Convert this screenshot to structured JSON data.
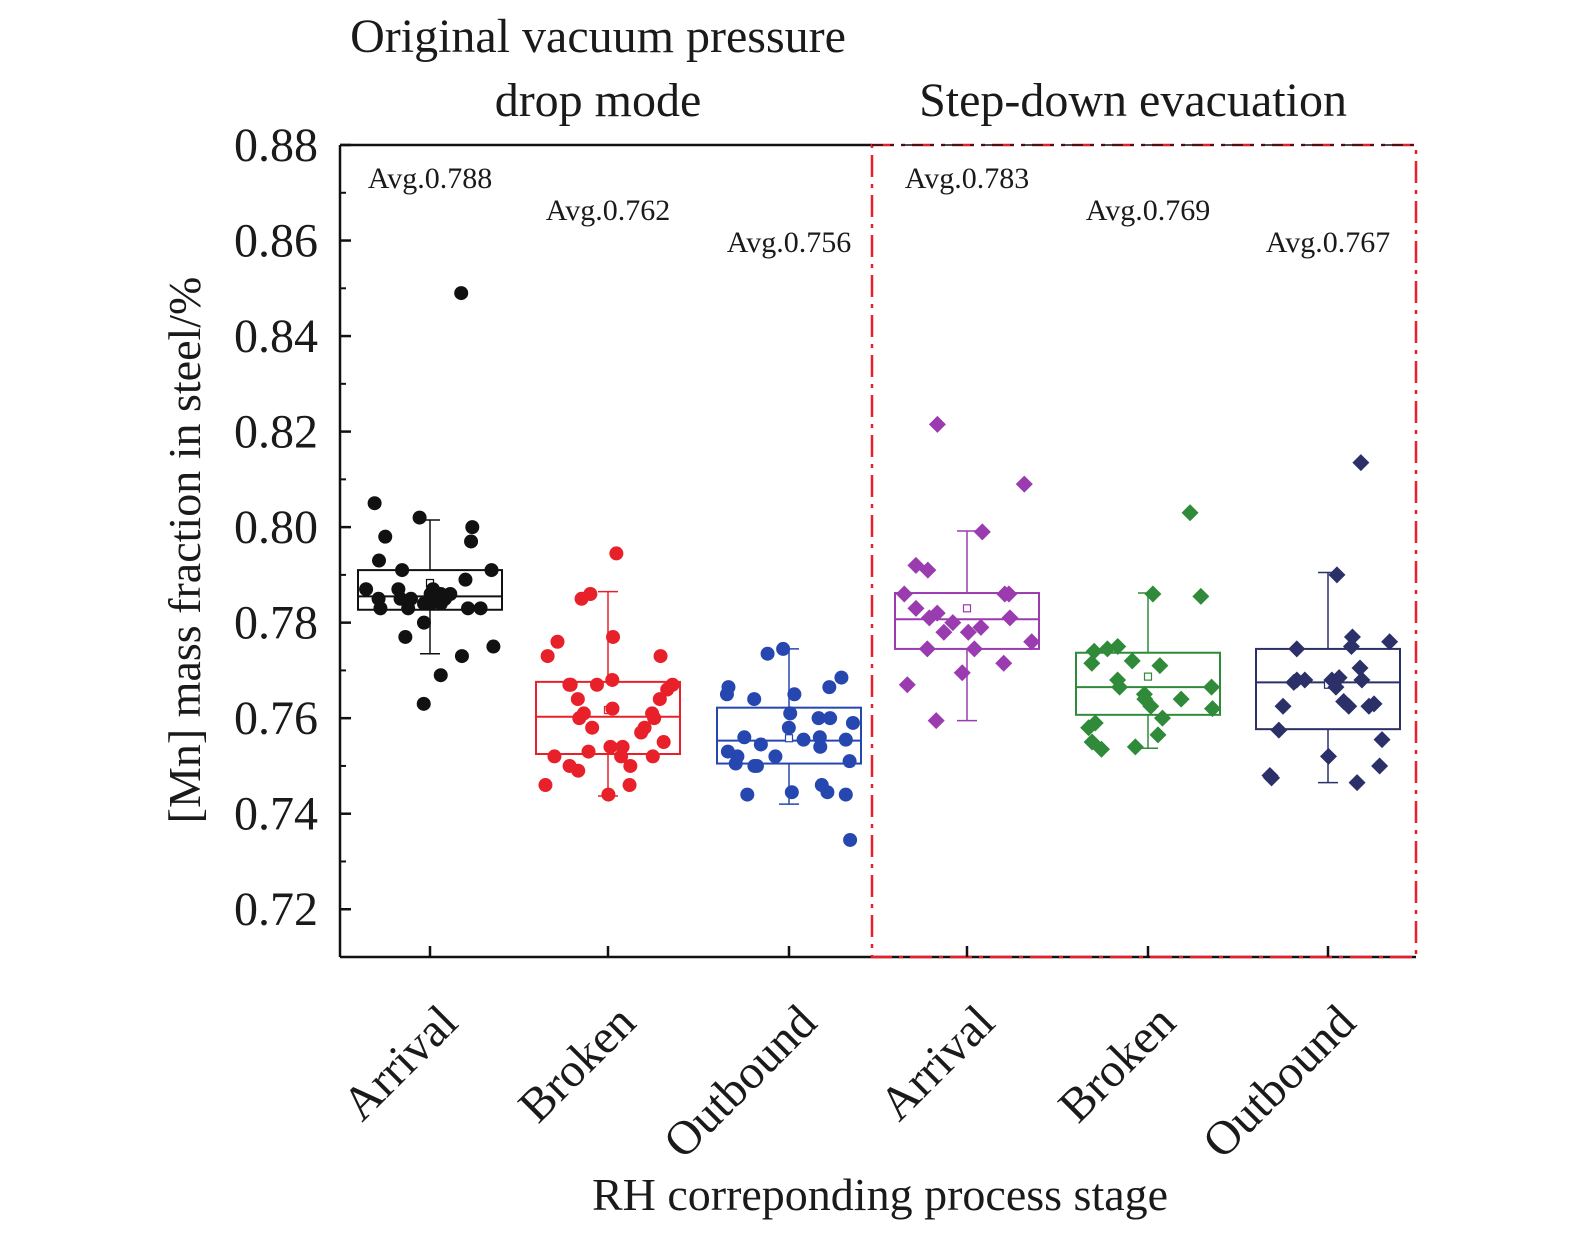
{
  "chart_data": {
    "type": "scatter",
    "subtype": "box-plot with overlaid jittered points",
    "group_titles": [
      {
        "lines": [
          "Original vacuum pressure",
          "drop mode"
        ]
      },
      {
        "lines": [
          "Step-down evacuation"
        ]
      }
    ],
    "xlabel": "RH correponding process stage",
    "ylabel": "[Mn] mass fraction in steel/%",
    "ylim": [
      0.71,
      0.88
    ],
    "yticks": [
      "0.72",
      "0.74",
      "0.76",
      "0.78",
      "0.80",
      "0.82",
      "0.84",
      "0.86",
      "0.88"
    ],
    "grid": false,
    "highlight_box": {
      "style": "dash-dot",
      "color": "#e8202a",
      "encloses": "Step-down evacuation"
    },
    "categories": [
      "Arrival",
      "Broken",
      "Outbound",
      "Arrival",
      "Broken",
      "Outbound"
    ],
    "series": [
      {
        "category": "Arrival",
        "group": "Original vacuum pressure drop mode",
        "color": "#111111",
        "marker": "circle",
        "avg_label": "Avg.0.788",
        "box": {
          "q1": 0.7827,
          "median": 0.7855,
          "q3": 0.791,
          "mean": 0.7883,
          "whisker_low": 0.7735,
          "whisker_high": 0.8015
        },
        "points": [
          0.849,
          0.805,
          0.802,
          0.8,
          0.798,
          0.797,
          0.793,
          0.791,
          0.791,
          0.789,
          0.787,
          0.787,
          0.786,
          0.786,
          0.785,
          0.785,
          0.785,
          0.784,
          0.784,
          0.783,
          0.783,
          0.783,
          0.783,
          0.784,
          0.784,
          0.785,
          0.786,
          0.787,
          0.78,
          0.777,
          0.775,
          0.773,
          0.769,
          0.763
        ]
      },
      {
        "category": "Broken",
        "group": "Original vacuum pressure drop mode",
        "color": "#e8202a",
        "marker": "circle",
        "avg_label": "Avg.0.762",
        "box": {
          "q1": 0.7525,
          "median": 0.7603,
          "q3": 0.7676,
          "mean": 0.7617,
          "whisker_low": 0.7437,
          "whisker_high": 0.7865
        },
        "points": [
          0.7945,
          0.786,
          0.785,
          0.777,
          0.776,
          0.773,
          0.773,
          0.767,
          0.767,
          0.767,
          0.767,
          0.768,
          0.766,
          0.764,
          0.764,
          0.762,
          0.761,
          0.761,
          0.76,
          0.76,
          0.758,
          0.758,
          0.757,
          0.755,
          0.754,
          0.754,
          0.753,
          0.752,
          0.752,
          0.752,
          0.75,
          0.75,
          0.749,
          0.746,
          0.746,
          0.744
        ]
      },
      {
        "category": "Outbound",
        "group": "Original vacuum pressure drop mode",
        "color": "#2747b0",
        "marker": "circle",
        "avg_label": "Avg.0.756",
        "box": {
          "q1": 0.7505,
          "median": 0.7553,
          "q3": 0.7622,
          "mean": 0.7558,
          "whisker_low": 0.742,
          "whisker_high": 0.7745
        },
        "points": [
          0.7745,
          0.7735,
          0.7685,
          0.7665,
          0.7665,
          0.765,
          0.765,
          0.764,
          0.761,
          0.76,
          0.76,
          0.759,
          0.758,
          0.756,
          0.756,
          0.7555,
          0.7555,
          0.7545,
          0.754,
          0.753,
          0.752,
          0.752,
          0.751,
          0.7505,
          0.75,
          0.75,
          0.746,
          0.7445,
          0.744,
          0.744,
          0.7445,
          0.7345
        ]
      },
      {
        "category": "Arrival",
        "group": "Step-down evacuation",
        "color": "#9a3bb0",
        "marker": "diamond",
        "avg_label": "Avg.0.783",
        "box": {
          "q1": 0.7745,
          "median": 0.7807,
          "q3": 0.7862,
          "mean": 0.783,
          "whisker_low": 0.7595,
          "whisker_high": 0.7992
        },
        "points": [
          0.8215,
          0.809,
          0.799,
          0.792,
          0.791,
          0.786,
          0.786,
          0.786,
          0.783,
          0.782,
          0.781,
          0.781,
          0.78,
          0.779,
          0.778,
          0.778,
          0.776,
          0.7745,
          0.7745,
          0.7715,
          0.7695,
          0.767,
          0.7595
        ]
      },
      {
        "category": "Broken",
        "group": "Step-down evacuation",
        "color": "#2f8a3a",
        "marker": "diamond",
        "avg_label": "Avg.0.769",
        "box": {
          "q1": 0.7607,
          "median": 0.7665,
          "q3": 0.7737,
          "mean": 0.7687,
          "whisker_low": 0.7537,
          "whisker_high": 0.7862
        },
        "points": [
          0.803,
          0.786,
          0.7855,
          0.775,
          0.7745,
          0.774,
          0.772,
          0.7715,
          0.771,
          0.768,
          0.7665,
          0.7665,
          0.765,
          0.764,
          0.764,
          0.7625,
          0.762,
          0.76,
          0.759,
          0.758,
          0.7565,
          0.755,
          0.754,
          0.7535
        ]
      },
      {
        "category": "Outbound",
        "group": "Step-down evacuation",
        "color": "#2b3068",
        "marker": "diamond",
        "avg_label": "Avg.0.767",
        "box": {
          "q1": 0.7577,
          "median": 0.7675,
          "q3": 0.7745,
          "mean": 0.767,
          "whisker_low": 0.7465,
          "whisker_high": 0.7905
        },
        "points": [
          0.8135,
          0.79,
          0.777,
          0.776,
          0.775,
          0.7745,
          0.7705,
          0.7685,
          0.768,
          0.768,
          0.768,
          0.768,
          0.7675,
          0.7665,
          0.7635,
          0.7625,
          0.7625,
          0.7625,
          0.763,
          0.7575,
          0.7555,
          0.752,
          0.75,
          0.748,
          0.7475,
          0.7465
        ]
      }
    ]
  }
}
